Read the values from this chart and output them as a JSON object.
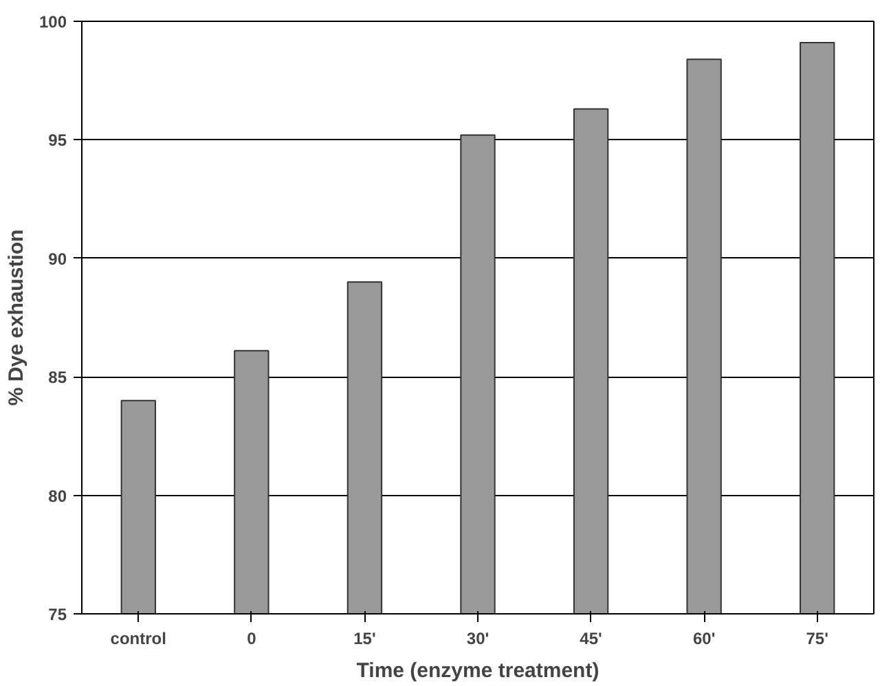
{
  "chart_data": {
    "type": "bar",
    "xlabel": "Time (enzyme treatment)",
    "ylabel": "% Dye exhaustion",
    "categories": [
      "control",
      "0",
      "15'",
      "30'",
      "45'",
      "60'",
      "75'"
    ],
    "values": [
      84.0,
      86.1,
      89.0,
      95.2,
      96.3,
      98.4,
      99.1
    ],
    "color": "#999999",
    "ylim": [
      75,
      100
    ],
    "yticks": [
      75,
      80,
      85,
      90,
      95,
      100
    ],
    "grid": "y"
  }
}
